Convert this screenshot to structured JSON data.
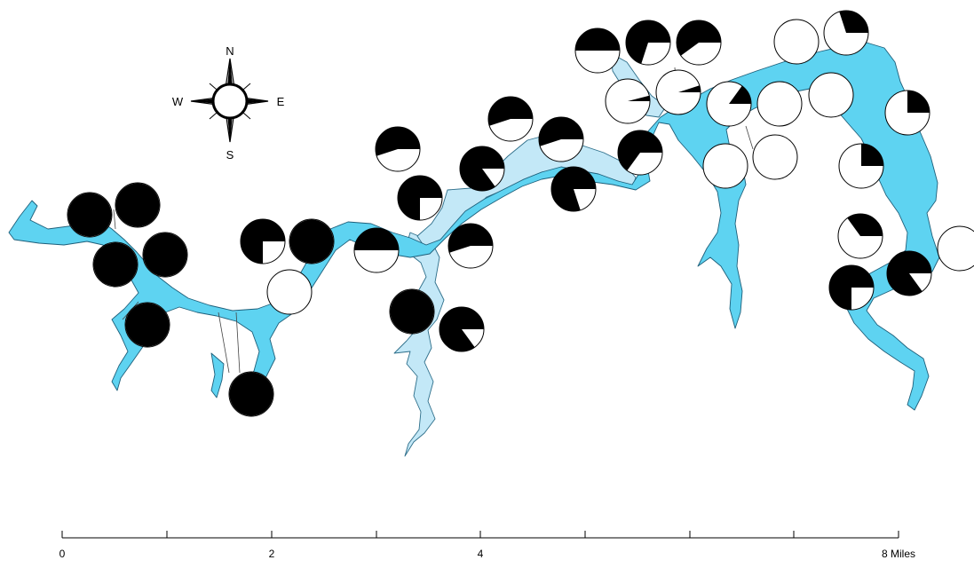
{
  "compass": {
    "north": "N",
    "south": "S",
    "east": "E",
    "west": "W"
  },
  "scale_bar": {
    "labels": [
      "0",
      "2",
      "4",
      "8 Miles"
    ]
  },
  "colors": {
    "main_water": "#5ed3f1",
    "arm_water": "#c3e8f7",
    "pie_filled": "#000000",
    "pie_empty": "#ffffff"
  },
  "sites": [
    {
      "id": "s01",
      "fraction": 1.0
    },
    {
      "id": "s02",
      "fraction": 1.0
    },
    {
      "id": "s03",
      "fraction": 1.0
    },
    {
      "id": "s04",
      "fraction": 1.0
    },
    {
      "id": "s05",
      "fraction": 1.0
    },
    {
      "id": "s06",
      "fraction": 1.0
    },
    {
      "id": "s07",
      "fraction": 0.75
    },
    {
      "id": "s08",
      "fraction": 1.0
    },
    {
      "id": "s09",
      "fraction": 0.0
    },
    {
      "id": "s10",
      "fraction": 0.55
    },
    {
      "id": "s11",
      "fraction": 0.75
    },
    {
      "id": "s12",
      "fraction": 0.5
    },
    {
      "id": "s13",
      "fraction": 1.0
    },
    {
      "id": "s14",
      "fraction": 0.55
    },
    {
      "id": "s15",
      "fraction": 0.85
    },
    {
      "id": "s16",
      "fraction": 0.85
    },
    {
      "id": "s17",
      "fraction": 0.55
    },
    {
      "id": "s18",
      "fraction": 0.55
    },
    {
      "id": "s19",
      "fraction": 0.8
    },
    {
      "id": "s20",
      "fraction": 0.5
    },
    {
      "id": "s21",
      "fraction": 0.7
    },
    {
      "id": "s22",
      "fraction": 0.6
    },
    {
      "id": "s23",
      "fraction": 0.65
    },
    {
      "id": "s24",
      "fraction": 0.04
    },
    {
      "id": "s25",
      "fraction": 0.05
    },
    {
      "id": "s26",
      "fraction": 0.15
    },
    {
      "id": "s27",
      "fraction": 0.0
    },
    {
      "id": "s28",
      "fraction": 0.0
    },
    {
      "id": "s29",
      "fraction": 0.0
    },
    {
      "id": "s30",
      "fraction": 0.0
    },
    {
      "id": "s31",
      "fraction": 0.0
    },
    {
      "id": "s32",
      "fraction": 0.3
    },
    {
      "id": "s33",
      "fraction": 0.25
    },
    {
      "id": "s34",
      "fraction": 0.25
    },
    {
      "id": "s35",
      "fraction": 0.35
    },
    {
      "id": "s36",
      "fraction": 0.75
    },
    {
      "id": "s37",
      "fraction": 0.85
    },
    {
      "id": "s38",
      "fraction": 0.0
    }
  ]
}
